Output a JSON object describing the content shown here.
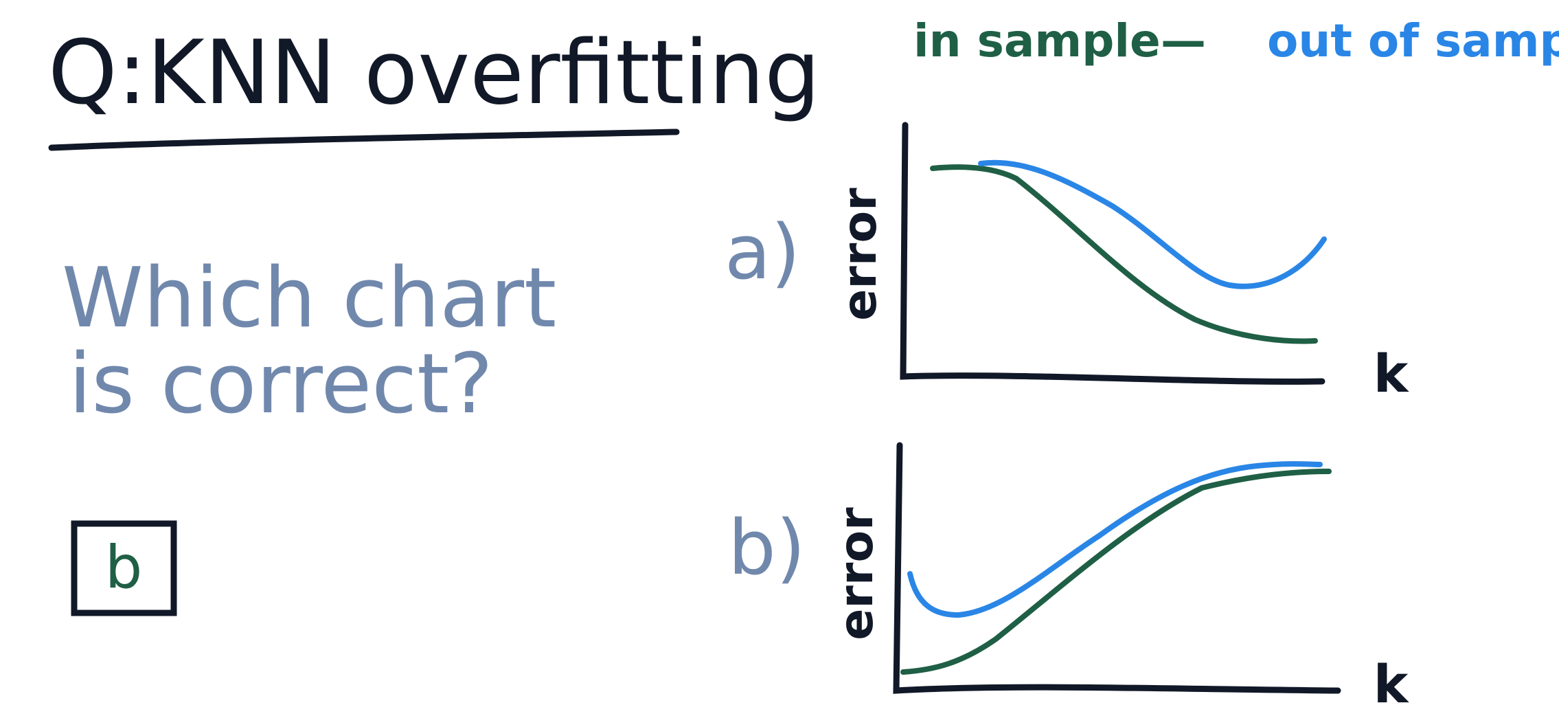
{
  "title": "Q:KNN overfitting",
  "legend": {
    "in_sample_label": "in sample",
    "separator": "—",
    "out_of_sample_label": "out of sample"
  },
  "question": {
    "line1": "Which chart",
    "line2": "is correct?"
  },
  "answer": "b",
  "charts": [
    {
      "label": "a)",
      "ylabel": "error",
      "xlabel": "k"
    },
    {
      "label": "b)",
      "ylabel": "error",
      "xlabel": "k"
    }
  ],
  "colors": {
    "ink": "#111827",
    "question": "#7188ad",
    "in_sample": "#1f5f46",
    "out_of_sample": "#2a86e6"
  }
}
